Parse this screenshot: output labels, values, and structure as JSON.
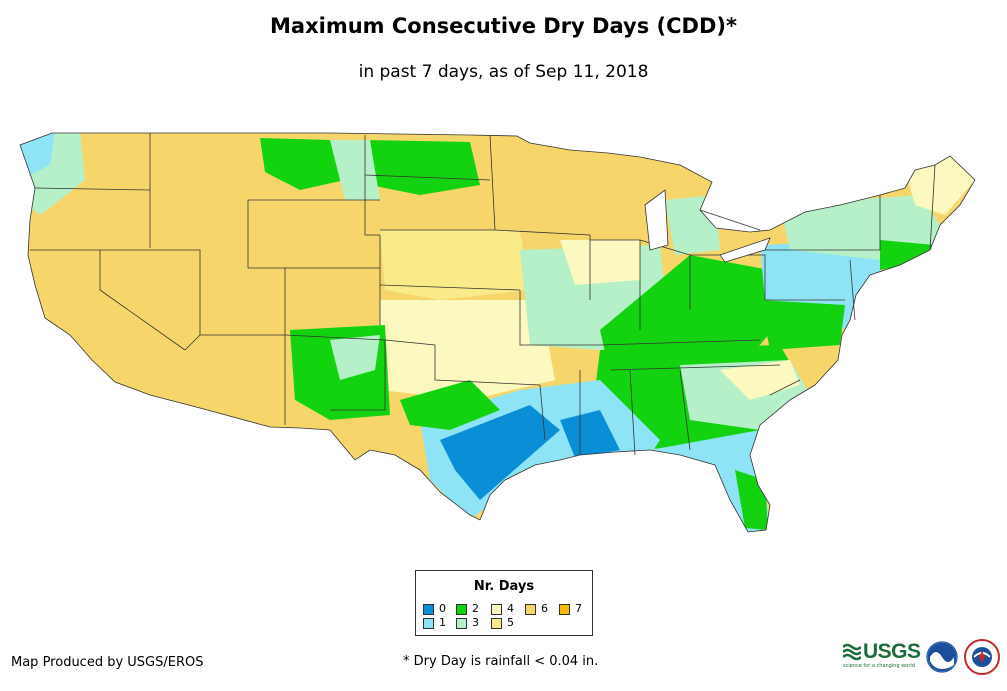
{
  "header": {
    "title": "Maximum Consecutive Dry Days (CDD)*",
    "subtitle": "in past 7 days, as of Sep 11, 2018"
  },
  "legend": {
    "title": "Nr. Days",
    "items": [
      {
        "label": "0",
        "color": "#0a8fd6"
      },
      {
        "label": "1",
        "color": "#8ee4f5"
      },
      {
        "label": "2",
        "color": "#13d20f"
      },
      {
        "label": "3",
        "color": "#b5f0c8"
      },
      {
        "label": "4",
        "color": "#fbf9c0"
      },
      {
        "label": "5",
        "color": "#f9ea8a"
      },
      {
        "label": "6",
        "color": "#f6d66a"
      },
      {
        "label": "7",
        "color": "#f9b800"
      }
    ]
  },
  "footer": {
    "credit": "Map Produced by USGS/EROS",
    "footnote": "* Dry Day is rainfall < 0.04 in.",
    "logos": {
      "usgs_word": "USGS",
      "usgs_tagline": "science for a changing world"
    }
  },
  "map": {
    "regions": [
      {
        "name": "west",
        "days": 6
      },
      {
        "name": "northern-plains",
        "days": 6
      },
      {
        "name": "central-plains",
        "days": 5
      },
      {
        "name": "southern-plains",
        "days": 4
      },
      {
        "name": "new-mexico",
        "days": 2
      },
      {
        "name": "great-lakes",
        "days": 6
      },
      {
        "name": "midwest",
        "days": 3
      },
      {
        "name": "ohio-valley",
        "days": 2
      },
      {
        "name": "mid-atlantic",
        "days": 1
      },
      {
        "name": "northeast",
        "days": 3
      },
      {
        "name": "gulf-coast",
        "days": 0
      },
      {
        "name": "southeast",
        "days": 2
      },
      {
        "name": "florida",
        "days": 1
      },
      {
        "name": "maine",
        "days": 4
      }
    ]
  }
}
